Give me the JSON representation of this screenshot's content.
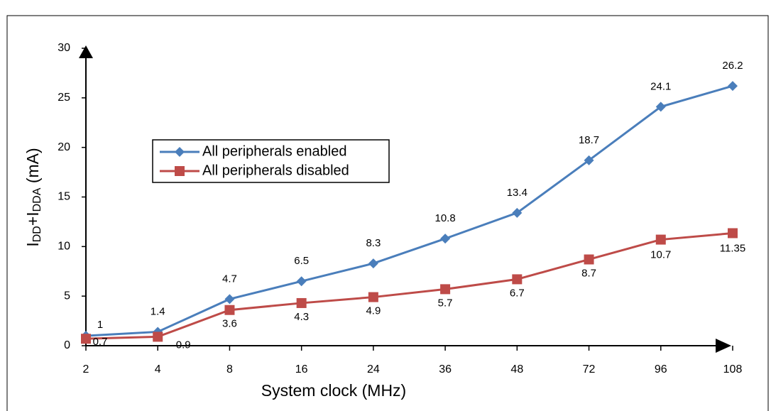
{
  "chart_data": {
    "type": "line",
    "ylabel_parts": [
      "I",
      "DD",
      "+I",
      "DDA",
      " (mA)"
    ],
    "xlabel": "System clock (MHz)",
    "categories": [
      "2",
      "4",
      "8",
      "16",
      "24",
      "36",
      "48",
      "72",
      "96",
      "108"
    ],
    "series": [
      {
        "name": "All peripherals enabled",
        "color": "#4a7ebb",
        "marker": "diamond",
        "values": [
          1,
          1.4,
          4.7,
          6.5,
          8.3,
          10.8,
          13.4,
          18.7,
          24.1,
          26.2
        ]
      },
      {
        "name": "All peripherals disabled",
        "color": "#be4b48",
        "marker": "square",
        "values": [
          0.7,
          0.9,
          3.6,
          4.3,
          4.9,
          5.7,
          6.7,
          8.7,
          10.7,
          11.35
        ]
      }
    ],
    "ylim": [
      0,
      30
    ],
    "yticks": [
      0,
      5,
      10,
      15,
      20,
      25,
      30
    ],
    "grid": false,
    "legend": "left"
  }
}
